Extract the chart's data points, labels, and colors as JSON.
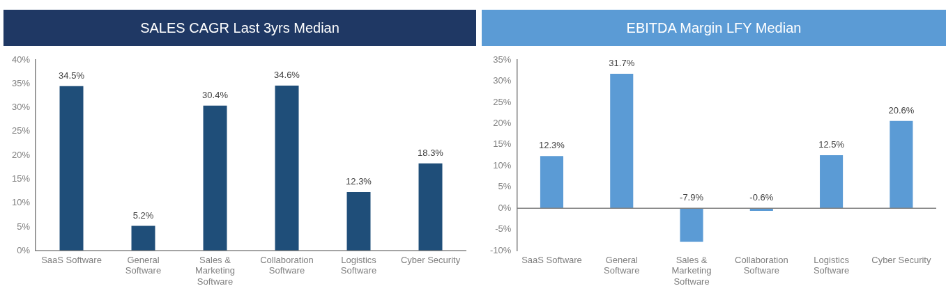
{
  "chart_data": [
    {
      "type": "bar",
      "title": "SALES CAGR Last 3yrs Median",
      "categories": [
        "SaaS Software",
        "General Software",
        "Sales & Marketing Software",
        "Collaboration Software",
        "Logistics Software",
        "Cyber Security"
      ],
      "values": [
        34.5,
        5.2,
        30.4,
        34.6,
        12.3,
        18.3
      ],
      "color": "#1f4e79",
      "value_labels": [
        "34.5%",
        "5.2%",
        "30.4%",
        "34.6%",
        "12.3%",
        "18.3%"
      ],
      "ylim": [
        0,
        40
      ],
      "yticks": [
        {
          "value": 0,
          "label": "0%"
        },
        {
          "value": 5,
          "label": "5%"
        },
        {
          "value": 10,
          "label": "10%"
        },
        {
          "value": 15,
          "label": "15%"
        },
        {
          "value": 20,
          "label": "20%"
        },
        {
          "value": 25,
          "label": "25%"
        },
        {
          "value": 30,
          "label": "30%"
        },
        {
          "value": 35,
          "label": "35%"
        },
        {
          "value": 40,
          "label": "40%"
        }
      ],
      "grid": false,
      "legend": false
    },
    {
      "type": "bar",
      "title": "EBITDA Margin LFY Median",
      "categories": [
        "SaaS Software",
        "General Software",
        "Sales & Marketing Software",
        "Collaboration Software",
        "Logistics Software",
        "Cyber Security"
      ],
      "values": [
        12.3,
        31.7,
        -7.9,
        -0.6,
        12.5,
        20.6
      ],
      "color": "#5b9bd5",
      "value_labels": [
        "12.3%",
        "31.7%",
        "-7.9%",
        "-0.6%",
        "12.5%",
        "20.6%"
      ],
      "ylim": [
        -10,
        35
      ],
      "yticks": [
        {
          "value": -10,
          "label": "-10%"
        },
        {
          "value": -5,
          "label": "-5%"
        },
        {
          "value": 0,
          "label": "0%"
        },
        {
          "value": 5,
          "label": "5%"
        },
        {
          "value": 10,
          "label": "10%"
        },
        {
          "value": 15,
          "label": "15%"
        },
        {
          "value": 20,
          "label": "20%"
        },
        {
          "value": 25,
          "label": "25%"
        },
        {
          "value": 30,
          "label": "30%"
        },
        {
          "value": 35,
          "label": "35%"
        }
      ],
      "ref_lines": [
        {
          "axis": "y",
          "value": 0,
          "color": "#808080"
        }
      ],
      "grid": false,
      "legend": false
    }
  ]
}
